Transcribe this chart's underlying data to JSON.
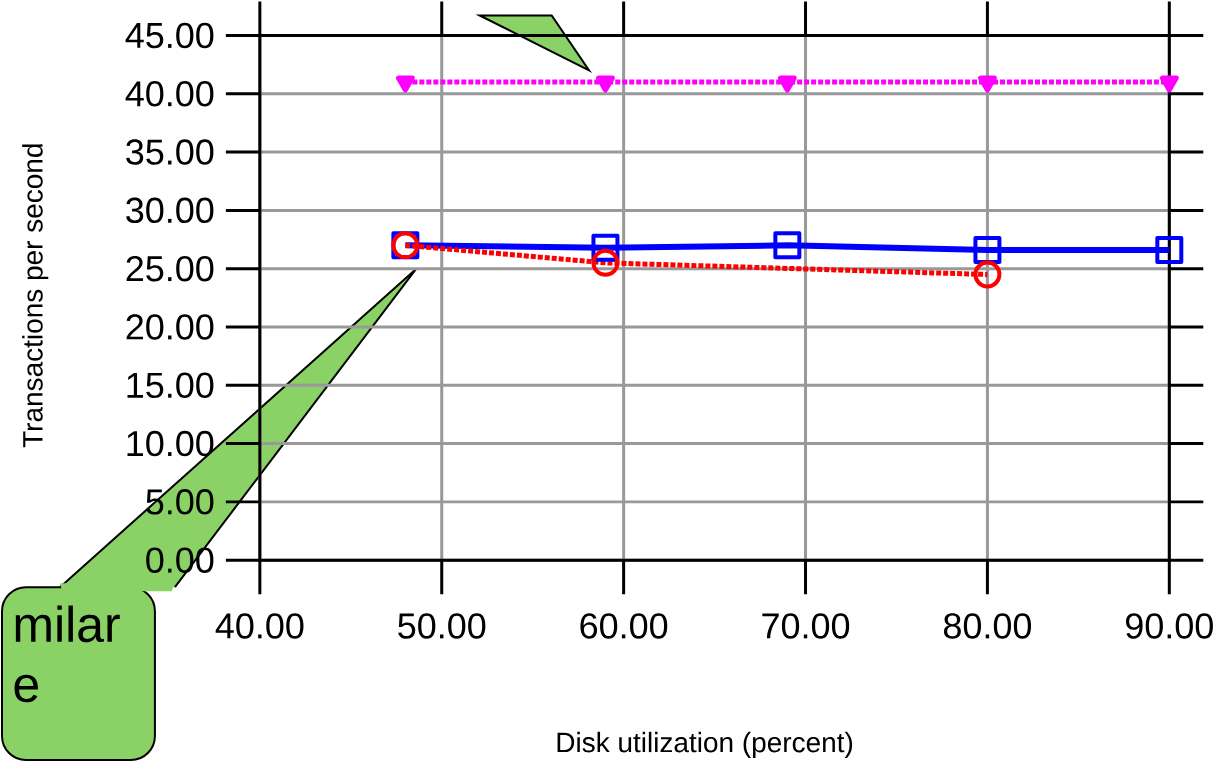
{
  "chart_data": {
    "type": "line",
    "xlabel": "Disk utilization (percent)",
    "ylabel": "Transactions per second",
    "xlim": [
      40,
      90
    ],
    "ylim": [
      0,
      45
    ],
    "xticks": [
      {
        "value": 40,
        "label": "40.00"
      },
      {
        "value": 50,
        "label": "50.00"
      },
      {
        "value": 60,
        "label": "60.00"
      },
      {
        "value": 70,
        "label": "70.00"
      },
      {
        "value": 80,
        "label": "80.00"
      },
      {
        "value": 90,
        "label": "90.00"
      }
    ],
    "yticks": [
      {
        "value": 0,
        "label": "0.00"
      },
      {
        "value": 5,
        "label": "5.00"
      },
      {
        "value": 10,
        "label": "10.00"
      },
      {
        "value": 15,
        "label": "15.00"
      },
      {
        "value": 20,
        "label": "20.00"
      },
      {
        "value": 25,
        "label": "25.00"
      },
      {
        "value": 30,
        "label": "30.00"
      },
      {
        "value": 35,
        "label": "35.00"
      },
      {
        "value": 40,
        "label": "40.00"
      },
      {
        "value": 45,
        "label": "45.00"
      }
    ],
    "grid": true,
    "series": [
      {
        "color": "#ff00ff",
        "marker": "triangle",
        "line_style": "dotted",
        "x": [
          48,
          59,
          69,
          80,
          90
        ],
        "values": [
          41.0,
          41.0,
          41.0,
          41.0,
          41.0
        ]
      },
      {
        "color": "#0000ff",
        "marker": "square",
        "line_style": "solid",
        "x": [
          48,
          59,
          69,
          80,
          90
        ],
        "values": [
          27.0,
          26.8,
          27.0,
          26.6,
          26.6
        ]
      },
      {
        "color": "#ff0000",
        "marker": "circle",
        "line_style": "dotted",
        "x": [
          48,
          59,
          80
        ],
        "values": [
          27.0,
          25.5,
          24.5
        ]
      }
    ],
    "annotations": [
      "milar e"
    ]
  }
}
